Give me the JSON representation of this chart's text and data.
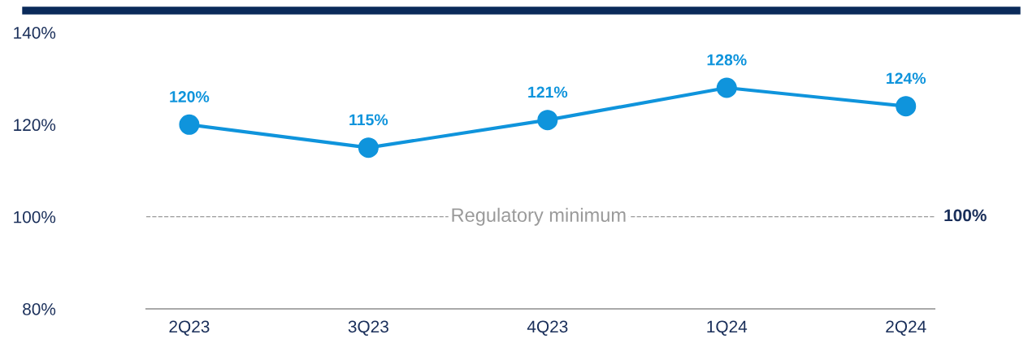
{
  "chart_data": {
    "type": "line",
    "categories": [
      "2Q23",
      "3Q23",
      "4Q23",
      "1Q24",
      "2Q24"
    ],
    "series": [
      {
        "color": "#0f94dc",
        "values": [
          120,
          115,
          121,
          128,
          124
        ],
        "value_labels": [
          "120%",
          "115%",
          "121%",
          "128%",
          "124%"
        ]
      }
    ],
    "ylim": [
      80,
      140
    ],
    "yticks": [
      {
        "value": 80,
        "label": "80%"
      },
      {
        "value": 100,
        "label": "100%"
      },
      {
        "value": 120,
        "label": "120%"
      },
      {
        "value": 140,
        "label": "140%"
      }
    ],
    "ref_lines": [
      {
        "axis": "y",
        "value": 100,
        "label": "Regulatory minimum",
        "color": "#9a9a9a",
        "line_style": "dashed"
      }
    ],
    "annotations": [
      "100%"
    ],
    "marker": "circle",
    "line_style": "solid",
    "grid": false,
    "legend": false
  }
}
